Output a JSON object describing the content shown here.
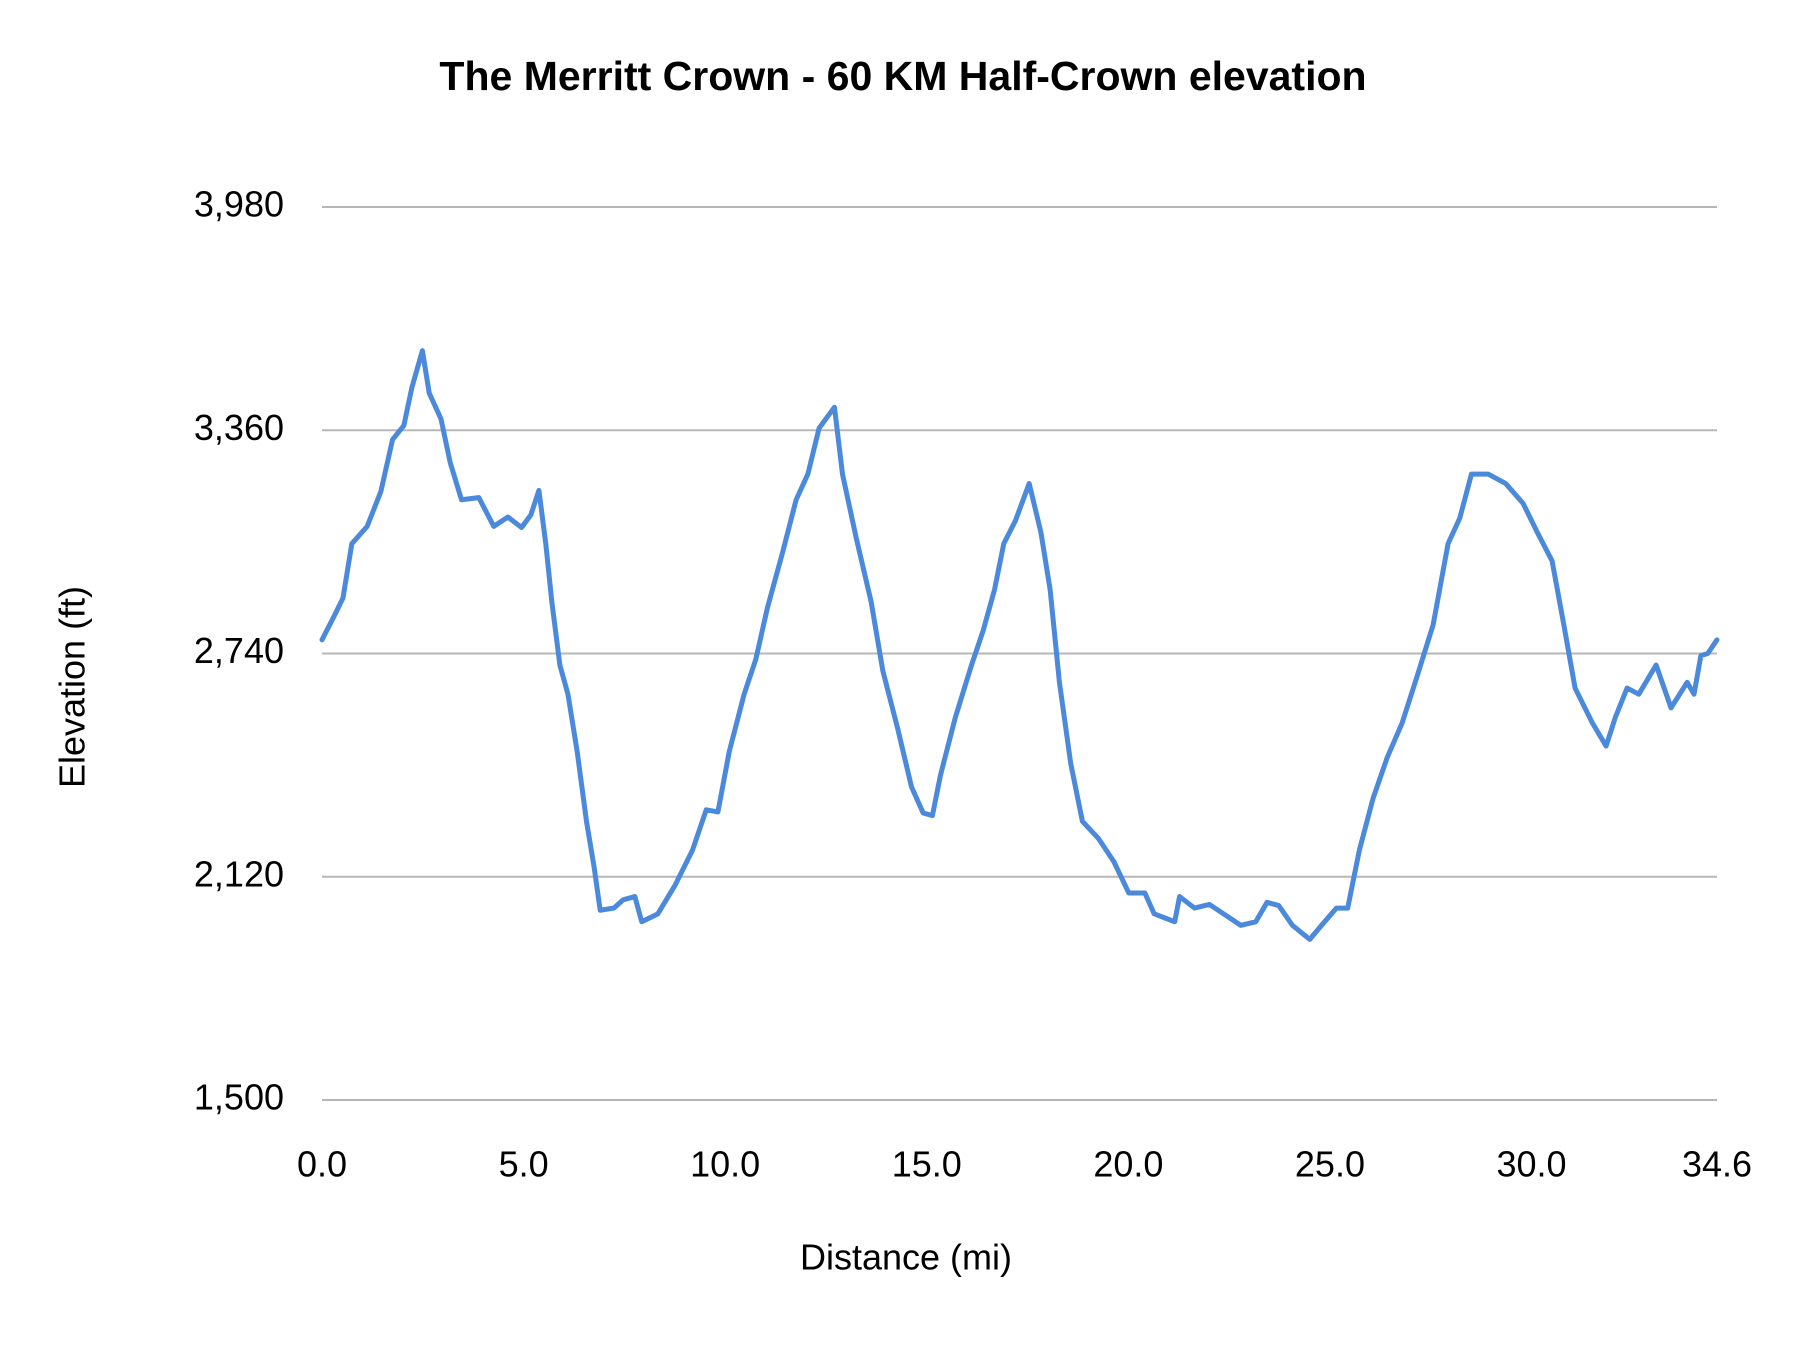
{
  "chart_data": {
    "type": "line",
    "title": "The Merritt Crown - 60 KM Half-Crown elevation",
    "x_label": "Distance (mi)",
    "y_label": "Elevation (ft)",
    "x": [
      0,
      0.31,
      0.52,
      0.74,
      1.12,
      1.46,
      1.75,
      2.03,
      2.23,
      2.49,
      2.66,
      2.95,
      3.18,
      3.46,
      3.89,
      4.26,
      4.61,
      4.95,
      5.18,
      5.38,
      5.55,
      5.7,
      5.9,
      6.1,
      6.33,
      6.56,
      6.75,
      6.9,
      7.24,
      7.47,
      7.76,
      7.93,
      8.33,
      8.76,
      9.19,
      9.53,
      9.82,
      10.1,
      10.47,
      10.76,
      11.05,
      11.42,
      11.76,
      12.05,
      12.33,
      12.71,
      12.91,
      13.25,
      13.62,
      13.91,
      14.28,
      14.62,
      14.91,
      15.14,
      15.34,
      15.71,
      16.11,
      16.4,
      16.68,
      16.91,
      17.2,
      17.54,
      17.83,
      18.06,
      18.29,
      18.57,
      18.86,
      19.26,
      19.64,
      20.01,
      20.41,
      20.64,
      21.15,
      21.27,
      21.64,
      22.01,
      22.36,
      22.79,
      23.16,
      23.44,
      23.73,
      24.07,
      24.5,
      24.79,
      25.16,
      25.44,
      25.73,
      26.07,
      26.42,
      26.79,
      27.16,
      27.56,
      27.93,
      28.22,
      28.51,
      28.93,
      29.36,
      29.79,
      30.14,
      30.51,
      30.8,
      31.08,
      31.51,
      31.85,
      32.08,
      32.37,
      32.66,
      33.09,
      33.46,
      33.86,
      34.03,
      34.2,
      34.37,
      34.6
    ],
    "series": [
      {
        "name": "Elevation",
        "color": "#4a89dc",
        "values": [
          2778,
          2846,
          2894,
          3045,
          3093,
          3190,
          3334,
          3373,
          3479,
          3581,
          3463,
          3392,
          3270,
          3167,
          3173,
          3093,
          3119,
          3090,
          3125,
          3193,
          3045,
          2884,
          2708,
          2627,
          2467,
          2274,
          2146,
          2027,
          2033,
          2056,
          2065,
          1995,
          2017,
          2097,
          2194,
          2306,
          2300,
          2467,
          2627,
          2724,
          2868,
          3019,
          3167,
          3238,
          3366,
          3424,
          3238,
          3061,
          2884,
          2692,
          2531,
          2370,
          2297,
          2290,
          2402,
          2563,
          2708,
          2804,
          2917,
          3045,
          3109,
          3212,
          3077,
          2917,
          2660,
          2435,
          2274,
          2226,
          2162,
          2075,
          2075,
          2017,
          1995,
          2065,
          2033,
          2043,
          2017,
          1985,
          1995,
          2049,
          2040,
          1985,
          1946,
          1985,
          2033,
          2033,
          2194,
          2338,
          2451,
          2547,
          2676,
          2820,
          3045,
          3116,
          3238,
          3238,
          3212,
          3157,
          3077,
          2997,
          2820,
          2644,
          2547,
          2483,
          2563,
          2644,
          2627,
          2708,
          2589,
          2660,
          2627,
          2734,
          2740,
          2778
        ]
      }
    ],
    "xlim": [
      0,
      34.6
    ],
    "xticks": [
      {
        "value": 0,
        "label": "0.0"
      },
      {
        "value": 5,
        "label": "5.0"
      },
      {
        "value": 10,
        "label": "10.0"
      },
      {
        "value": 15,
        "label": "15.0"
      },
      {
        "value": 20,
        "label": "20.0"
      },
      {
        "value": 25,
        "label": "25.0"
      },
      {
        "value": 30,
        "label": "30.0"
      },
      34.6
    ],
    "ylim": [
      1500,
      3980
    ],
    "yticks": [
      {
        "value": 1500,
        "label": "1,500"
      },
      {
        "value": 2120,
        "label": "2,120"
      },
      {
        "value": 2740,
        "label": "2,740"
      },
      {
        "value": 3360,
        "label": "3,360"
      },
      {
        "value": 3980,
        "label": "3,980"
      }
    ],
    "grid": true
  }
}
